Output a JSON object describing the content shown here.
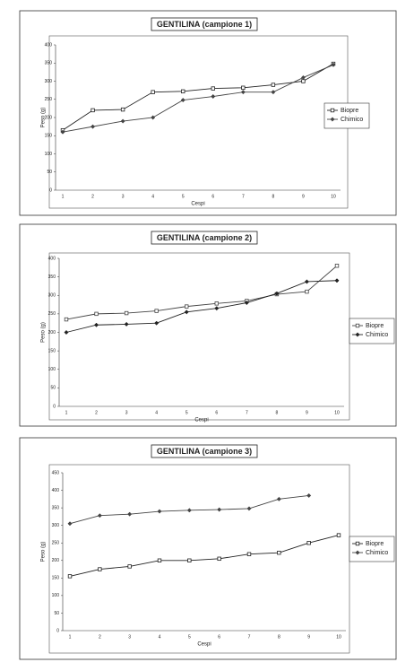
{
  "chart_data": [
    {
      "type": "line",
      "title": "GENTILINA (campione 1)",
      "x_label": "Cespi",
      "y_label": "Peso (g)",
      "categories": [
        "1",
        "2",
        "3",
        "4",
        "5",
        "6",
        "7",
        "8",
        "9",
        "10"
      ],
      "ylim": [
        0,
        400
      ],
      "yticks": [
        0,
        50,
        100,
        150,
        200,
        250,
        300,
        350,
        400
      ],
      "grid": false,
      "legend": "right",
      "series": [
        {
          "name": "Biopre",
          "color": "#222",
          "marker": "square",
          "values": [
            165,
            220,
            222,
            270,
            272,
            280,
            282,
            290,
            300,
            348
          ]
        },
        {
          "name": "Chimico",
          "color": "#444",
          "marker": "diamond",
          "values": [
            160,
            175,
            190,
            200,
            248,
            258,
            270,
            270,
            310,
            345
          ]
        }
      ]
    },
    {
      "type": "line",
      "title": "GENTILINA (campione 2)",
      "x_label": "Cespi",
      "y_label": "Peso (g)",
      "categories": [
        "1",
        "2",
        "3",
        "4",
        "5",
        "6",
        "7",
        "8",
        "9",
        "10"
      ],
      "ylim": [
        0,
        400
      ],
      "yticks": [
        0,
        50,
        100,
        150,
        200,
        250,
        300,
        350,
        400
      ],
      "grid": false,
      "legend": "right",
      "series": [
        {
          "name": "Biopre",
          "color": "#444",
          "marker": "square",
          "values": [
            235,
            250,
            252,
            258,
            270,
            278,
            285,
            303,
            310,
            380
          ]
        },
        {
          "name": "Chimico",
          "color": "#222",
          "marker": "diamond",
          "values": [
            200,
            220,
            222,
            225,
            255,
            265,
            280,
            305,
            337,
            340
          ]
        }
      ]
    },
    {
      "type": "line",
      "title": "GENTILINA (campione 3)",
      "x_label": "Cespi",
      "y_label": "Peso (g)",
      "categories": [
        "1",
        "2",
        "3",
        "4",
        "5",
        "6",
        "7",
        "8",
        "9",
        "10"
      ],
      "ylim": [
        0,
        450
      ],
      "yticks": [
        0,
        50,
        100,
        150,
        200,
        250,
        300,
        350,
        400,
        450
      ],
      "grid": false,
      "legend": "right",
      "series": [
        {
          "name": "Biopre",
          "color": "#222",
          "marker": "square",
          "values": [
            155,
            175,
            183,
            200,
            200,
            205,
            218,
            222,
            250,
            272
          ]
        },
        {
          "name": "Chimico",
          "color": "#444",
          "marker": "diamond",
          "values": [
            305,
            328,
            332,
            340,
            343,
            345,
            348,
            375,
            385,
            null
          ]
        }
      ]
    }
  ]
}
